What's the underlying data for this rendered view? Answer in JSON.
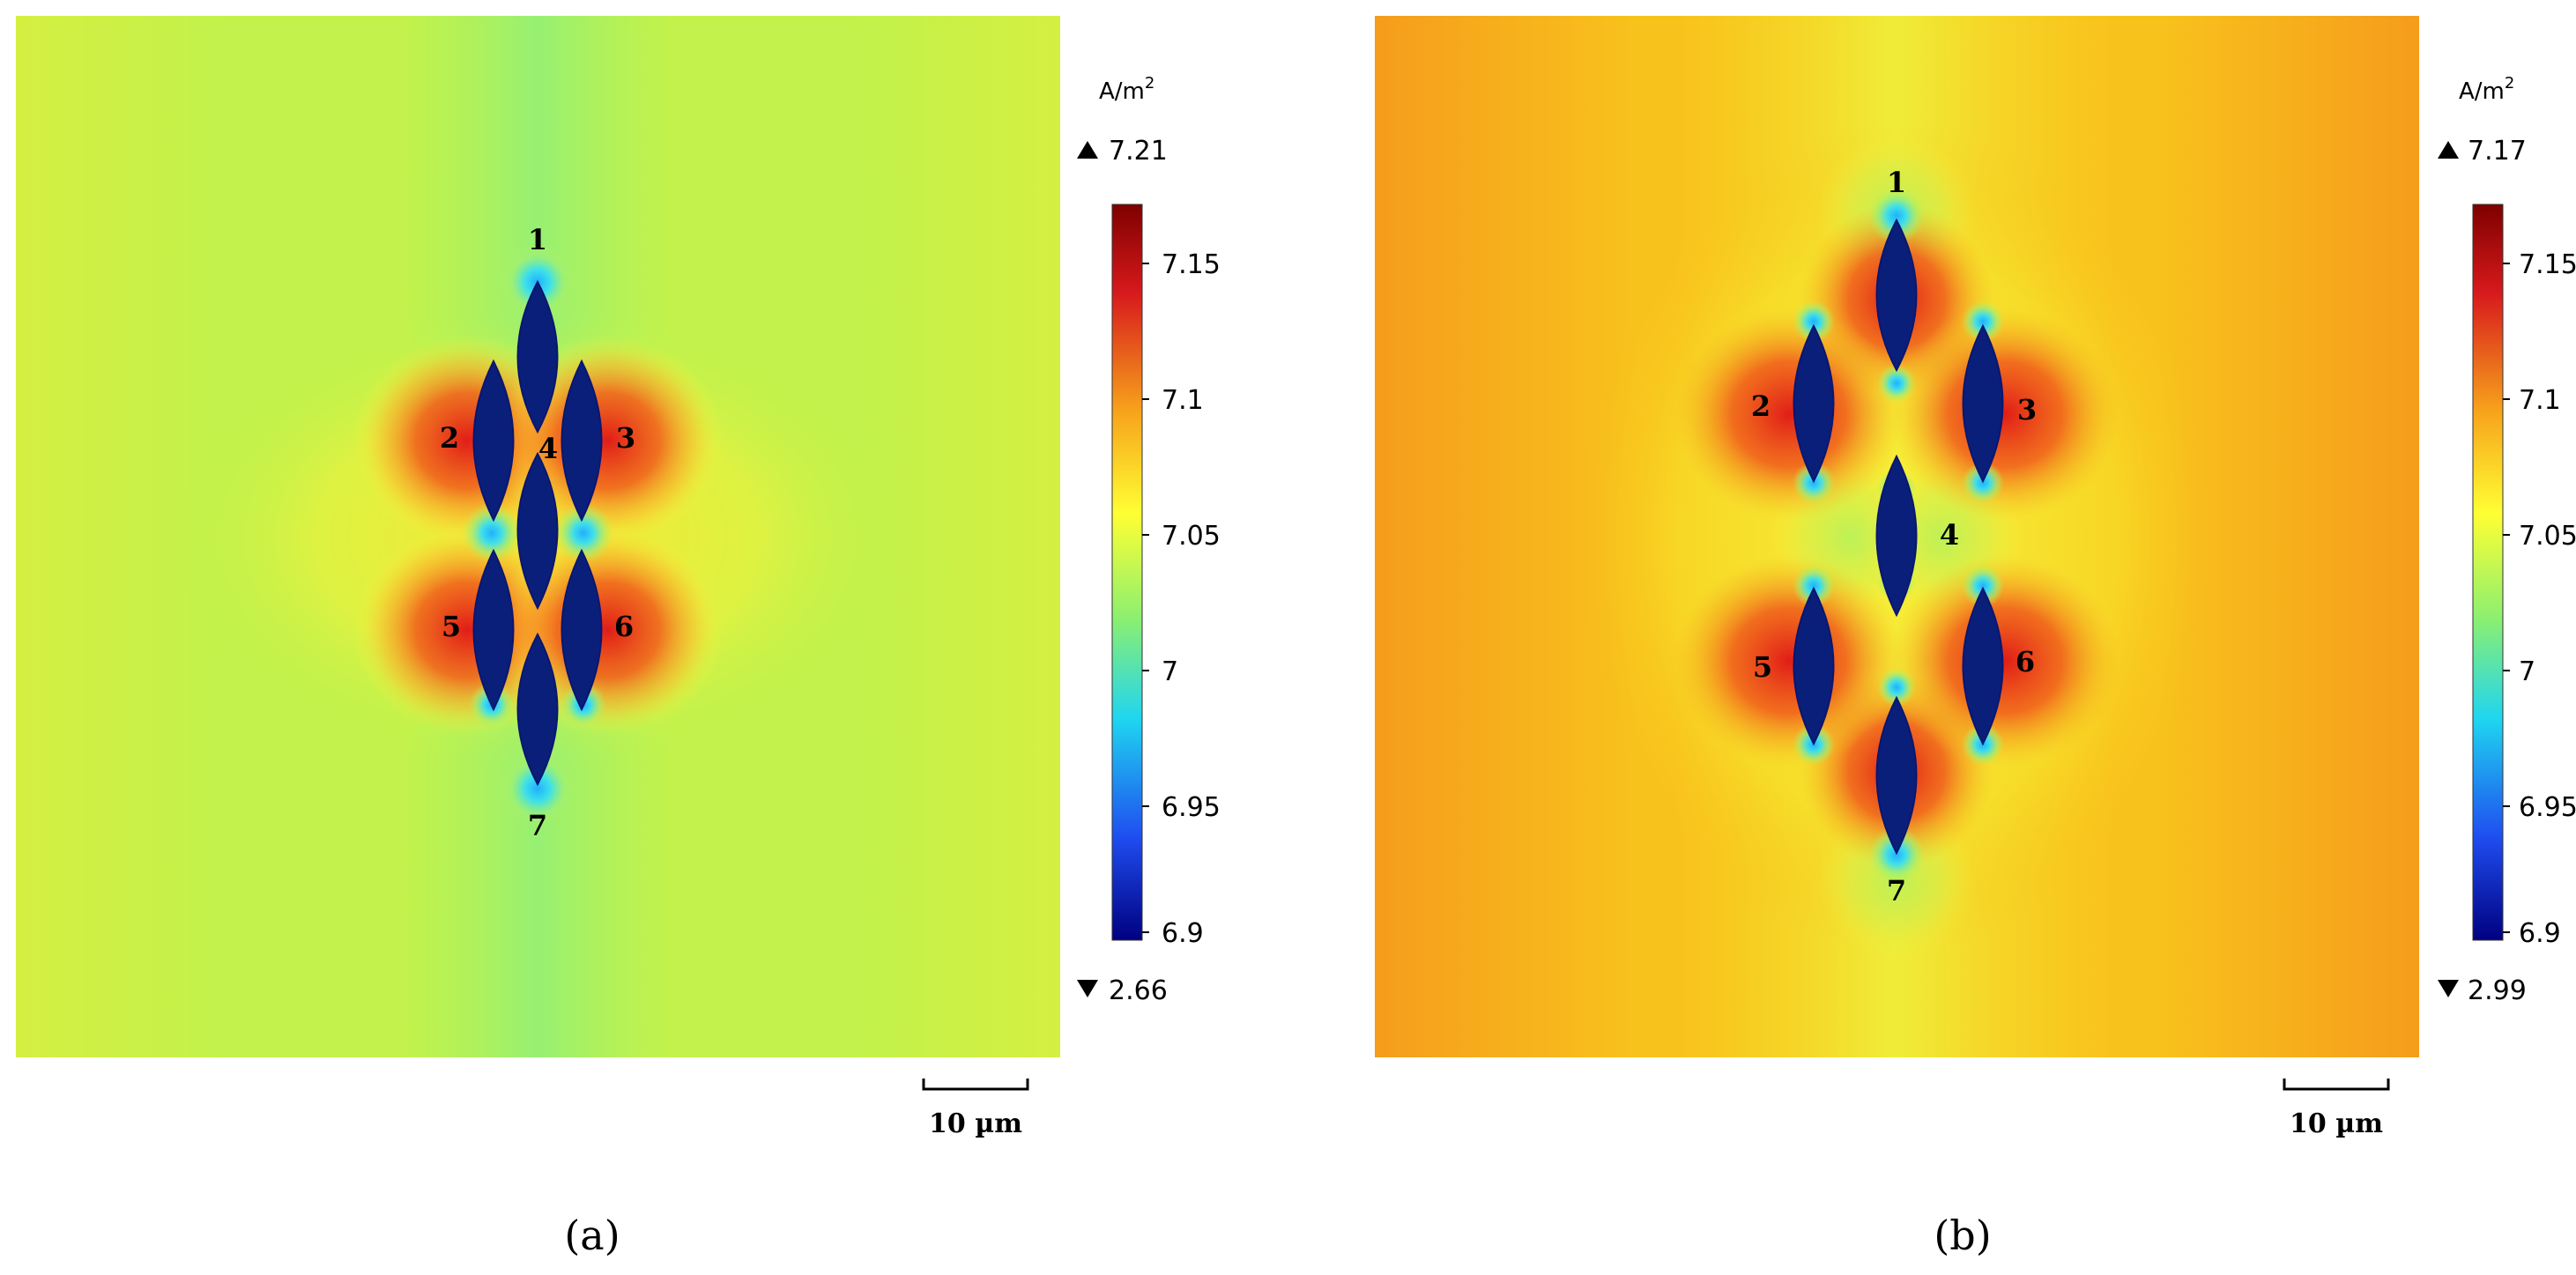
{
  "panels": [
    {
      "id": "a",
      "caption": "(a)",
      "unit": "A/m",
      "unit_exp": "2",
      "max_label": "7.21",
      "min_label": "2.66",
      "colorbar_ticks": [
        "7.15",
        "7.1",
        "7.05",
        "7",
        "6.95",
        "6.9"
      ],
      "scale_bar_label": "10 µm",
      "background_color": "#c2f24b",
      "hot_color": "#e8241a",
      "inclusions": [
        "1",
        "2",
        "3",
        "4",
        "5",
        "6",
        "7"
      ]
    },
    {
      "id": "b",
      "caption": "(b)",
      "unit": "A/m",
      "unit_exp": "2",
      "max_label": "7.17",
      "min_label": "2.99",
      "colorbar_ticks": [
        "7.15",
        "7.1",
        "7.05",
        "7",
        "6.95",
        "6.9"
      ],
      "scale_bar_label": "10 µm",
      "background_color": "#f8c21c",
      "hot_color": "#e8241a",
      "inclusions": [
        "1",
        "2",
        "3",
        "4",
        "5",
        "6",
        "7"
      ]
    }
  ],
  "colorbar_colors": [
    "#7f0000",
    "#e41a1c",
    "#f7a21b",
    "#ffff33",
    "#8ef06e",
    "#1fd5f0",
    "#1f4df0",
    "#000080"
  ],
  "inclusion_color": "#0a1f7a"
}
